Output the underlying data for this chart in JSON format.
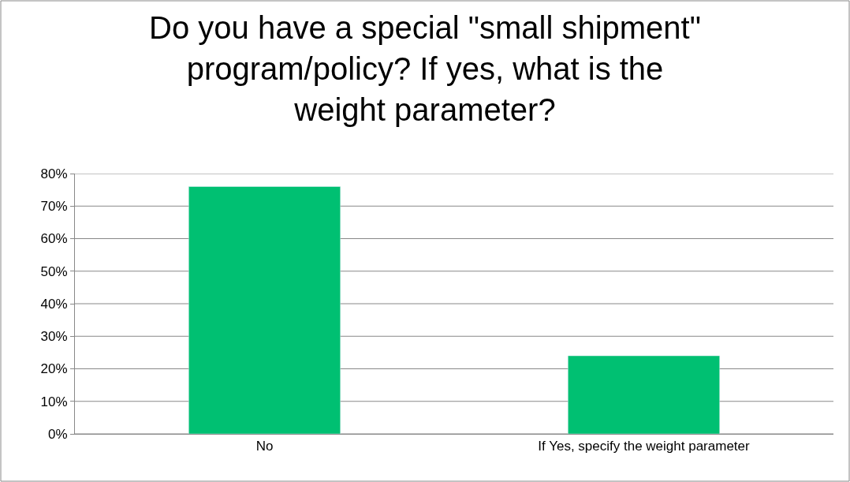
{
  "chart_data": {
    "type": "bar",
    "title": "Do you have a special \"small shipment\" program/policy? If yes, what is the weight parameter?",
    "categories": [
      "No",
      "If Yes, specify the weight parameter"
    ],
    "values": [
      76,
      24
    ],
    "color": "#00c072",
    "ylim": [
      0,
      80
    ],
    "yticks": [
      {
        "value": 0,
        "label": "0%"
      },
      {
        "value": 10,
        "label": "10%"
      },
      {
        "value": 20,
        "label": "20%"
      },
      {
        "value": 30,
        "label": "30%"
      },
      {
        "value": 40,
        "label": "40%"
      },
      {
        "value": 50,
        "label": "50%"
      },
      {
        "value": 60,
        "label": "60%"
      },
      {
        "value": 70,
        "label": "70%"
      },
      {
        "value": 80,
        "label": "80%"
      }
    ],
    "grid": "y"
  }
}
